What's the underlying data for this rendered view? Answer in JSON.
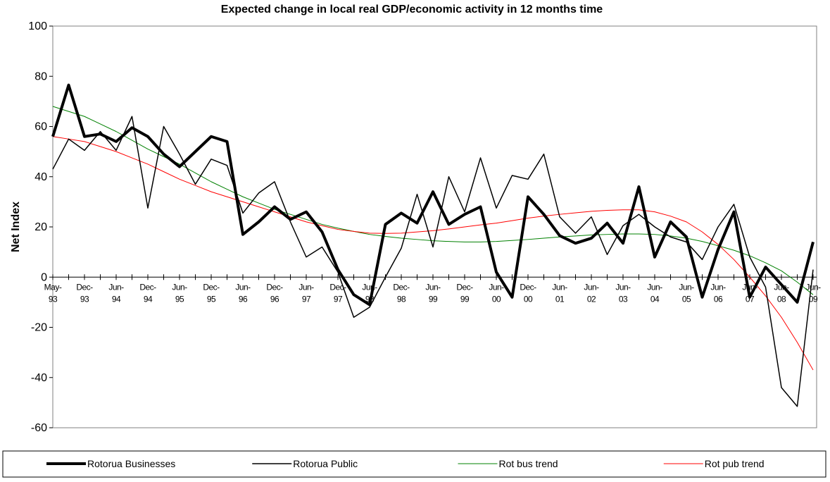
{
  "chart_data": {
    "type": "line",
    "title": "Expected change in local real GDP/economic activity in 12 months time",
    "y_label": "Net Index",
    "categories": [
      "May-93",
      null,
      "Dec-93",
      null,
      "Jun-94",
      null,
      "Dec-94",
      null,
      "Jun-95",
      null,
      "Dec-95",
      null,
      "Jun-96",
      null,
      "Dec-96",
      null,
      "Jun-97",
      null,
      "Dec-97",
      null,
      "Jun-98",
      null,
      "Dec-98",
      null,
      "Jun-99",
      null,
      "Dec-99",
      null,
      "Jun-00",
      null,
      "Dec-00",
      null,
      "Jun-01",
      null,
      "Jun-02",
      null,
      "Jun-03",
      null,
      "Jun-04",
      null,
      "Jun-05",
      null,
      "Jun-06",
      null,
      "Jun-07",
      null,
      "Jun-08",
      null,
      "Jun-09"
    ],
    "series": [
      {
        "name": "Rotorua Businesses",
        "color": "#000000",
        "line_width": 4,
        "values": [
          56,
          76.5,
          56,
          57,
          54,
          59.5,
          56,
          49,
          44,
          50,
          56,
          54,
          17,
          22,
          28,
          23,
          26,
          18,
          3,
          -7,
          -11,
          21,
          25.5,
          21.5,
          34,
          21,
          25,
          28,
          2,
          -8,
          32,
          25,
          16.5,
          13.5,
          15.5,
          21.5,
          13.5,
          36,
          8,
          22,
          16,
          -8,
          11,
          26,
          -8,
          4,
          -3,
          -10,
          14
        ]
      },
      {
        "name": "Rotorua Public",
        "color": "#000000",
        "line_width": 1.5,
        "values": [
          43,
          55,
          50.5,
          58,
          50.5,
          64,
          27.5,
          60,
          49,
          37,
          47,
          44.5,
          25.5,
          33.5,
          38,
          22,
          8,
          12,
          2,
          -16,
          -12,
          0,
          11.5,
          33,
          12,
          40,
          26,
          47.5,
          27.5,
          40.5,
          39,
          49,
          24,
          17.5,
          24,
          9,
          20.5,
          25,
          20,
          16,
          14,
          7,
          20,
          29,
          8,
          -4,
          -44,
          -51.5,
          3
        ]
      },
      {
        "name": "Rot bus trend",
        "color": "#008000",
        "line_width": 1,
        "values": [
          68,
          66,
          64,
          61,
          58,
          54.5,
          51,
          48,
          45,
          41.5,
          38,
          35,
          32,
          29.5,
          27,
          25,
          23,
          21,
          19.5,
          18.2,
          17,
          16.2,
          15.5,
          15,
          14.5,
          14.2,
          14,
          14,
          14.2,
          14.6,
          15,
          15.5,
          16,
          16.4,
          16.8,
          17,
          17.2,
          17.2,
          17,
          16.4,
          15.5,
          14.2,
          12.5,
          10.7,
          8.5,
          5.7,
          2.5,
          -2,
          -7
        ]
      },
      {
        "name": "Rot pub trend",
        "color": "#ff0000",
        "line_width": 1,
        "values": [
          56,
          55,
          54,
          52,
          50,
          47.5,
          45,
          42,
          39,
          36.5,
          34,
          32,
          30,
          28,
          26,
          24,
          22,
          20.5,
          19,
          18.2,
          17.5,
          17.4,
          17.5,
          18,
          18.5,
          19.2,
          20,
          20.8,
          21.5,
          22.5,
          23.5,
          24.3,
          25,
          25.6,
          26.2,
          26.6,
          26.8,
          26.8,
          26,
          24.3,
          22,
          18,
          13,
          7,
          0,
          -7.5,
          -16,
          -26,
          -37
        ]
      }
    ],
    "ylim": [
      -60,
      100
    ],
    "yticks": [
      -60,
      -40,
      -20,
      0,
      20,
      40,
      60,
      80,
      100
    ],
    "grid": false,
    "legend": "bottom"
  }
}
